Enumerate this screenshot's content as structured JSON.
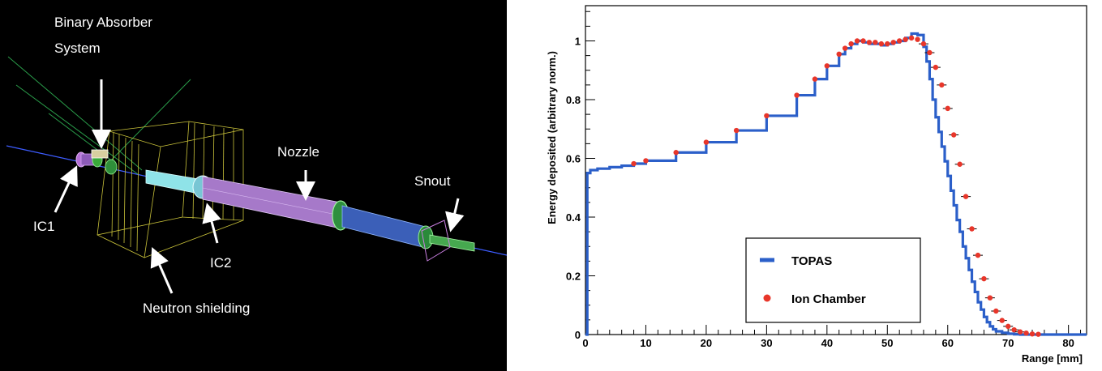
{
  "diagram": {
    "labels": {
      "binary_absorber_line1": "Binary Absorber",
      "binary_absorber_line2": "System",
      "nozzle": "Nozzle",
      "snout": "Snout",
      "ic1": "IC1",
      "ic2": "IC2",
      "neutron_shielding": "Neutron shielding"
    }
  },
  "chart_data": {
    "type": "line",
    "title": "",
    "xlabel": "Range [mm]",
    "ylabel": "Energy deposited (arbitrary norm.)",
    "xlim": [
      0,
      83
    ],
    "ylim": [
      0,
      1.12
    ],
    "x_ticks": [
      "0",
      "10",
      "20",
      "30",
      "40",
      "50",
      "60",
      "70",
      "80"
    ],
    "y_ticks": [
      "0",
      "0.2",
      "0.4",
      "0.6",
      "0.8",
      "1"
    ],
    "grid": false,
    "legend_position": "bottom-center",
    "colors": {
      "topas": "#2b5fc9",
      "ion_chamber": "#e8362a",
      "error_bars": "#000000"
    },
    "series": [
      {
        "name": "TOPAS",
        "style": "step",
        "x": [
          0,
          0.3,
          0.8,
          2,
          4,
          6,
          8,
          10,
          15,
          20,
          25,
          30,
          35,
          38,
          40,
          42,
          43,
          44,
          45,
          46,
          47,
          48,
          49,
          50,
          51,
          52,
          53,
          54,
          55,
          56,
          56.5,
          57,
          57.5,
          58,
          58.5,
          59,
          59.5,
          60,
          60.5,
          61,
          61.5,
          62,
          62.5,
          63,
          63.5,
          64,
          64.5,
          65,
          65.5,
          66,
          66.5,
          67,
          67.5,
          68,
          69,
          70,
          71,
          72,
          74,
          76,
          80,
          83
        ],
        "y": [
          0,
          0.55,
          0.56,
          0.565,
          0.57,
          0.575,
          0.582,
          0.592,
          0.62,
          0.655,
          0.695,
          0.745,
          0.815,
          0.87,
          0.915,
          0.955,
          0.975,
          0.99,
          1.0,
          0.995,
          0.99,
          0.99,
          0.985,
          0.99,
          0.995,
          1.0,
          1.01,
          1.025,
          1.02,
          0.98,
          0.93,
          0.87,
          0.8,
          0.74,
          0.69,
          0.64,
          0.59,
          0.54,
          0.49,
          0.44,
          0.39,
          0.35,
          0.3,
          0.26,
          0.22,
          0.18,
          0.145,
          0.11,
          0.085,
          0.06,
          0.042,
          0.028,
          0.018,
          0.011,
          0.006,
          0.003,
          0.001,
          0,
          0,
          0,
          0,
          0
        ]
      },
      {
        "name": "Ion Chamber",
        "style": "markers",
        "x": [
          8,
          10,
          15,
          20,
          25,
          30,
          35,
          38,
          40,
          42,
          43,
          44,
          45,
          46,
          47,
          48,
          49,
          50,
          51,
          52,
          53,
          54,
          55,
          56,
          57,
          58,
          59,
          60,
          61,
          62,
          63,
          64,
          65,
          66,
          67,
          68,
          69,
          70,
          71,
          72,
          73,
          74,
          75
        ],
        "y": [
          0.582,
          0.592,
          0.62,
          0.655,
          0.695,
          0.745,
          0.815,
          0.87,
          0.915,
          0.955,
          0.975,
          0.99,
          1.0,
          1.0,
          0.995,
          0.995,
          0.99,
          0.99,
          0.995,
          1.0,
          1.005,
          1.01,
          1.005,
          0.99,
          0.96,
          0.91,
          0.85,
          0.77,
          0.68,
          0.58,
          0.47,
          0.36,
          0.27,
          0.19,
          0.125,
          0.08,
          0.048,
          0.028,
          0.016,
          0.009,
          0.005,
          0.002,
          0.001
        ]
      }
    ]
  }
}
